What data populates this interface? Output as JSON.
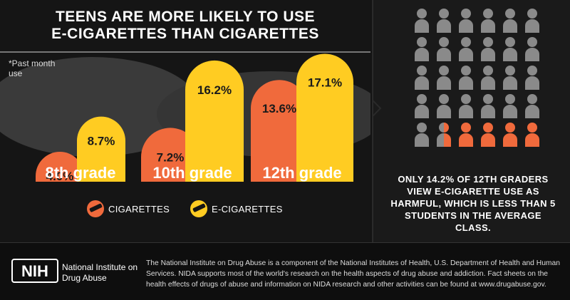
{
  "header": {
    "title_line1": "TEENS ARE MORE LIKELY TO USE",
    "title_line2": "E-CIGARETTES THAN CIGARETTES"
  },
  "footnote": "*Past month use",
  "chart_data": {
    "type": "bar",
    "categories": [
      "8th grade",
      "10th grade",
      "12th grade"
    ],
    "series": [
      {
        "name": "CIGARETTES",
        "values": [
          4.0,
          7.2,
          13.6
        ],
        "labels": [
          "4.0%",
          "7.2%",
          "13.6%"
        ],
        "color": "#f06a3c"
      },
      {
        "name": "E-CIGARETTES",
        "values": [
          8.7,
          16.2,
          17.1
        ],
        "labels": [
          "8.7%",
          "16.2%",
          "17.1%"
        ],
        "color": "#ffcc22"
      }
    ],
    "ylim": [
      0,
      20
    ],
    "legend": "bottom"
  },
  "people_grid": {
    "rows": 5,
    "cols": 6,
    "harmful_fraction_of_class": 4.5,
    "color_gray": "#8a8a8a",
    "color_highlight": "#f06a3c"
  },
  "caption": "ONLY 14.2% OF 12TH GRADERS VIEW E-CIGARETTE USE AS HARMFUL, WHICH IS LESS THAN 5 STUDENTS IN THE AVERAGE CLASS.",
  "footer": {
    "logo_text": "NIH",
    "org_name": "National Institute on Drug Abuse",
    "text": "The National Institute on Drug Abuse is a component of the National Institutes of Health, U.S. Department of Health and Human Services. NIDA supports most of the world's research on the health aspects of drug abuse and addiction. Fact sheets on the health effects of drugs of abuse and information on NIDA research and other activities can be found at www.drugabuse.gov."
  }
}
